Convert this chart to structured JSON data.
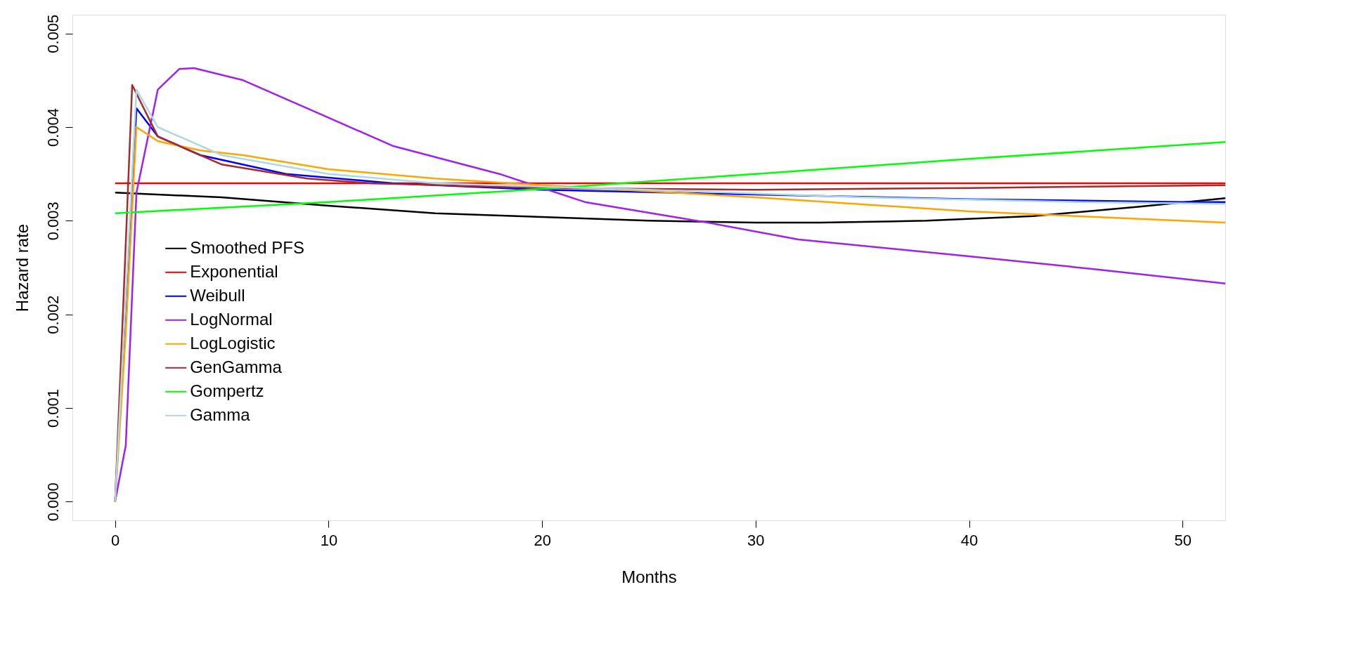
{
  "chart_data": {
    "type": "line",
    "xlabel": "Months",
    "ylabel": "Hazard rate",
    "xlim": [
      -2,
      52
    ],
    "ylim": [
      -0.0002,
      0.0052
    ],
    "xticks": [
      0,
      10,
      20,
      30,
      40,
      50
    ],
    "yticks": [
      {
        "value": 0,
        "label": "0.000"
      },
      {
        "value": 0.001,
        "label": "0.001"
      },
      {
        "value": 0.002,
        "label": "0.002"
      },
      {
        "value": 0.003,
        "label": "0.003"
      },
      {
        "value": 0.004,
        "label": "0.004"
      },
      {
        "value": 0.005,
        "label": "0.005"
      }
    ],
    "grid": false,
    "legend": "left",
    "line_style": "solid",
    "marker": "none",
    "series": [
      {
        "name": "Smoothed PFS",
        "color": "#000000",
        "x": [
          0,
          5,
          10,
          15,
          20,
          25,
          30,
          33,
          38,
          43,
          48,
          52
        ],
        "values": [
          0.0033,
          0.00325,
          0.00316,
          0.00308,
          0.00304,
          0.003,
          0.00298,
          0.00298,
          0.003,
          0.00305,
          0.00315,
          0.00324
        ]
      },
      {
        "name": "Exponential",
        "color": "#ff0000",
        "x": [
          0,
          52
        ],
        "values": [
          0.0034,
          0.0034
        ]
      },
      {
        "name": "Weibull",
        "color": "#0000ff",
        "x": [
          0,
          0.5,
          1,
          2,
          4,
          8,
          13,
          20,
          30,
          40,
          50,
          52
        ],
        "values": [
          0,
          0.0021,
          0.0042,
          0.0039,
          0.0037,
          0.0035,
          0.0034,
          0.00333,
          0.00328,
          0.00323,
          0.0032,
          0.0032
        ]
      },
      {
        "name": "LogNormal",
        "color": "#a020f0",
        "x": [
          0,
          0.5,
          1,
          2,
          3,
          3.7,
          6,
          10,
          13,
          18,
          22,
          28,
          32,
          40,
          46,
          52
        ],
        "values": [
          0,
          0.0006,
          0.0033,
          0.0044,
          0.00462,
          0.00463,
          0.0045,
          0.0041,
          0.0038,
          0.0035,
          0.0032,
          0.00297,
          0.0028,
          0.00262,
          0.00248,
          0.00233
        ]
      },
      {
        "name": "LogLogistic",
        "color": "#ffa500",
        "x": [
          0,
          0.5,
          1,
          2,
          4,
          6,
          10,
          15,
          20,
          30,
          40,
          52
        ],
        "values": [
          0,
          0.0018,
          0.004,
          0.00385,
          0.00375,
          0.0037,
          0.00355,
          0.00345,
          0.00338,
          0.00325,
          0.0031,
          0.00298
        ]
      },
      {
        "name": "GenGamma",
        "color": "#a52a2a",
        "x": [
          0,
          0.4,
          0.8,
          2,
          5,
          9,
          12,
          20,
          30,
          40,
          52
        ],
        "values": [
          0,
          0.0022,
          0.00445,
          0.0039,
          0.0036,
          0.00345,
          0.0034,
          0.00335,
          0.00333,
          0.00335,
          0.00338
        ]
      },
      {
        "name": "Gompertz",
        "color": "#00ff00",
        "x": [
          0,
          10,
          20,
          30,
          40,
          52
        ],
        "values": [
          0.00308,
          0.0032,
          0.00334,
          0.0035,
          0.00366,
          0.00384
        ]
      },
      {
        "name": "Gamma",
        "color": "#add8e6",
        "x": [
          0,
          0.5,
          1,
          2,
          5,
          10,
          15,
          25,
          35,
          45,
          52
        ],
        "values": [
          0,
          0.0022,
          0.0044,
          0.004,
          0.0037,
          0.0035,
          0.0034,
          0.00333,
          0.00325,
          0.0032,
          0.00318
        ]
      }
    ]
  }
}
